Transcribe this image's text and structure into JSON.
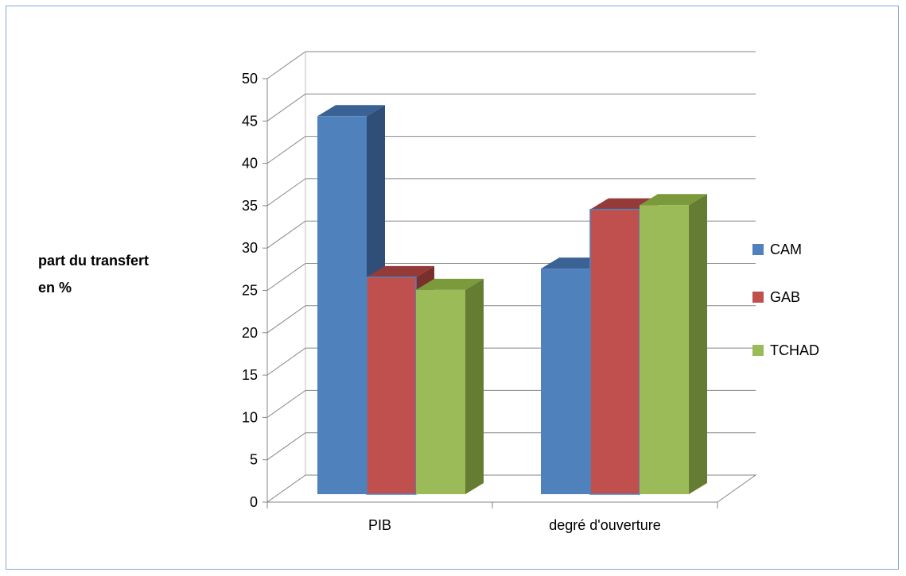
{
  "chart_data": {
    "type": "bar",
    "style": "3d-clustered-column",
    "categories": [
      "PIB",
      "degré d'ouverture"
    ],
    "series": [
      {
        "name": "CAM",
        "values": [
          46.5,
          28.5
        ],
        "color": "#4f81bd",
        "top_color": "#3a6294",
        "side_color": "#2f4f78"
      },
      {
        "name": "GAB",
        "values": [
          27.5,
          35.5
        ],
        "color": "#c0504d",
        "top_color": "#943a38",
        "side_color": "#7a2f2d"
      },
      {
        "name": "TCHAD",
        "values": [
          26,
          36
        ],
        "color": "#9bbb59",
        "top_color": "#7a9a3c",
        "side_color": "#657c33"
      }
    ],
    "ylabel": [
      "part du transfert",
      "en %"
    ],
    "ylim": [
      0,
      50
    ],
    "yticks": [
      "0",
      "5",
      "10",
      "15",
      "20",
      "25",
      "30",
      "35",
      "40",
      "45",
      "50"
    ],
    "grid": true,
    "legend": "right"
  }
}
